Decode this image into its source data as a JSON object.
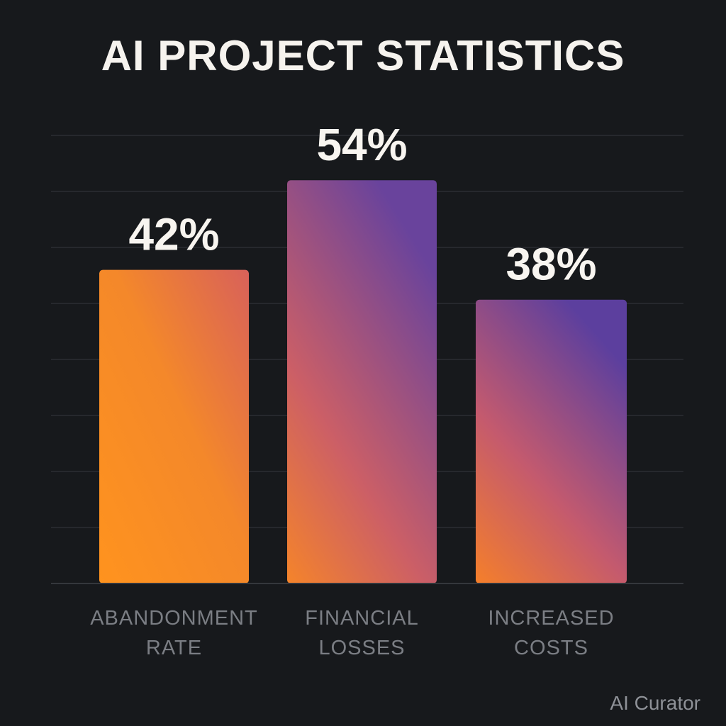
{
  "chart_data": {
    "type": "bar",
    "title": "AI PROJECT STATISTICS",
    "categories": [
      [
        "ABANDONMENT",
        "RATE"
      ],
      [
        "FINANCIAL",
        "LOSSES"
      ],
      [
        "INCREASED",
        "COSTS"
      ]
    ],
    "values": [
      42,
      54,
      38
    ],
    "value_labels": [
      "42%",
      "54%",
      "38%"
    ],
    "unit": "%",
    "xlabel": "",
    "ylabel": "",
    "ylim": [
      0,
      60
    ],
    "grid": true,
    "gradient_colors": {
      "warm": "#ff931e",
      "mid": "#c45a6e",
      "cool": "#5c3f9e"
    },
    "colors": {
      "background": "#17191c",
      "gridline": "#2b2e33",
      "title": "#f6f3ee",
      "category_text": "#7b7e84"
    }
  },
  "watermark": "AI Curator"
}
